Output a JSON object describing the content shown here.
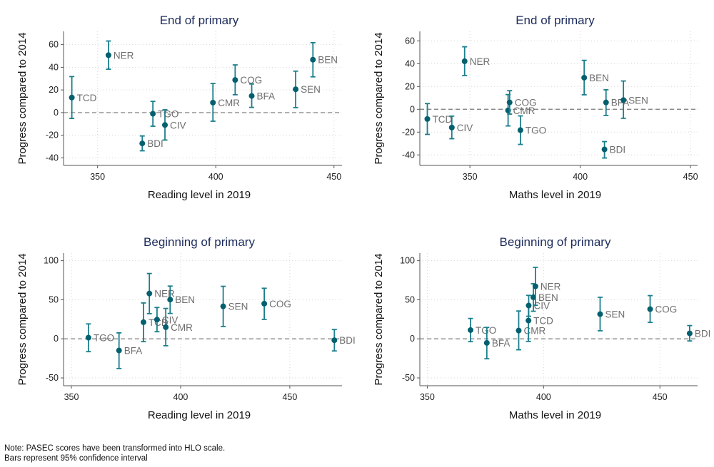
{
  "colors": {
    "marker": "#04606e",
    "errorbar": "#1b7e8c",
    "point_label": "#6e6e6e",
    "title": "#1c2b5c",
    "axis": "#555555",
    "grid": "#d6d6d6",
    "zero_line": "#777777"
  },
  "note": [
    "Note: PASEC scores have been transformed into HLO scale.",
    "Bars represent 95% confidence interval"
  ],
  "chart_data": [
    {
      "type": "scatter",
      "title": "End of primary",
      "xlabel": "Reading level in 2019",
      "ylabel": "Progress compared to 2014",
      "xlim": [
        335.6,
        453.4
      ],
      "ylim": [
        -46.6,
        71.7
      ],
      "xticks": [
        350,
        400,
        450
      ],
      "yticks": [
        -40,
        -20,
        0,
        20,
        40,
        60
      ],
      "grid": true,
      "reference_line_y": 0,
      "points": [
        {
          "label": "TCD",
          "x": 339.1,
          "y": 13.3,
          "lo": -5.1,
          "hi": 31.8
        },
        {
          "label": "NER",
          "x": 354.6,
          "y": 50.7,
          "lo": 38.3,
          "hi": 63.2
        },
        {
          "label": "BDI",
          "x": 368.9,
          "y": -27.2,
          "lo": -33.7,
          "hi": -20.6
        },
        {
          "label": "TGO",
          "x": 373.4,
          "y": -1.0,
          "lo": -12.0,
          "hi": 9.9
        },
        {
          "label": "CIV",
          "x": 378.5,
          "y": -10.9,
          "lo": -24.2,
          "hi": 2.5
        },
        {
          "label": "CMR",
          "x": 398.8,
          "y": 8.8,
          "lo": -7.6,
          "hi": 25.7
        },
        {
          "label": "COG",
          "x": 408.2,
          "y": 28.8,
          "lo": 15.8,
          "hi": 42.1
        },
        {
          "label": "BFA",
          "x": 415.2,
          "y": 14.7,
          "lo": 4.6,
          "hi": 25.3
        },
        {
          "label": "SEN",
          "x": 433.8,
          "y": 20.6,
          "lo": 4.4,
          "hi": 36.6
        },
        {
          "label": "BEN",
          "x": 441.1,
          "y": 46.7,
          "lo": 31.6,
          "hi": 61.7
        }
      ]
    },
    {
      "type": "scatter",
      "title": "End of primary",
      "xlabel": "Maths level in 2019",
      "ylabel": "Progress compared to 2014",
      "xlim": [
        327.3,
        453.2
      ],
      "ylim": [
        -49.2,
        68.3
      ],
      "xticks": [
        350,
        400,
        450
      ],
      "yticks": [
        -40,
        -20,
        0,
        20,
        40,
        60
      ],
      "grid": true,
      "reference_line_y": 0,
      "points": [
        {
          "label": "TCD",
          "x": 330.7,
          "y": -8.5,
          "lo": -22.0,
          "hi": 5.0
        },
        {
          "label": "CIV",
          "x": 341.8,
          "y": -16.0,
          "lo": -25.8,
          "hi": -6.0
        },
        {
          "label": "NER",
          "x": 347.6,
          "y": 42.1,
          "lo": 29.6,
          "hi": 54.8
        },
        {
          "label": "CMR",
          "x": 367.3,
          "y": -1.0,
          "lo": -14.6,
          "hi": 12.9
        },
        {
          "label": "COG",
          "x": 368.0,
          "y": 6.0,
          "lo": -4.2,
          "hi": 16.3
        },
        {
          "label": "TGO",
          "x": 372.9,
          "y": -18.3,
          "lo": -30.8,
          "hi": -5.8
        },
        {
          "label": "BEN",
          "x": 401.8,
          "y": 27.7,
          "lo": 12.7,
          "hi": 42.9
        },
        {
          "label": "BDI",
          "x": 411.0,
          "y": -35.2,
          "lo": -42.7,
          "hi": -28.3
        },
        {
          "label": "BFA",
          "x": 411.7,
          "y": 6.0,
          "lo": -5.4,
          "hi": 17.1
        },
        {
          "label": "SEN",
          "x": 419.6,
          "y": 8.1,
          "lo": -7.9,
          "hi": 24.8
        }
      ]
    },
    {
      "type": "scatter",
      "title": "Beginning of primary",
      "xlabel": "Reading level in 2019",
      "ylabel": "Progress compared to 2014",
      "xlim": [
        346.4,
        473.9
      ],
      "ylim": [
        -60,
        109.7
      ],
      "xticks": [
        350,
        400,
        450
      ],
      "yticks": [
        -50,
        0,
        50,
        100
      ],
      "grid": true,
      "reference_line_y": 0,
      "points": [
        {
          "label": "TGO",
          "x": 357.8,
          "y": 1.5,
          "lo": -16.4,
          "hi": 19.1
        },
        {
          "label": "BFA",
          "x": 371.8,
          "y": -14.9,
          "lo": -38.0,
          "hi": 7.6
        },
        {
          "label": "TCD",
          "x": 383.0,
          "y": 21.3,
          "lo": -3.6,
          "hi": 45.9
        },
        {
          "label": "NER",
          "x": 385.7,
          "y": 58.0,
          "lo": 32.2,
          "hi": 83.6
        },
        {
          "label": "CIV",
          "x": 389.2,
          "y": 24.6,
          "lo": 9.1,
          "hi": 40.1
        },
        {
          "label": "CMR",
          "x": 393.2,
          "y": 14.9,
          "lo": -8.8,
          "hi": 38.9
        },
        {
          "label": "BEN",
          "x": 395.2,
          "y": 50.2,
          "lo": 32.5,
          "hi": 67.5
        },
        {
          "label": "SEN",
          "x": 419.5,
          "y": 41.6,
          "lo": 15.8,
          "hi": 67.2
        },
        {
          "label": "COG",
          "x": 438.3,
          "y": 45.0,
          "lo": 24.9,
          "hi": 64.7
        },
        {
          "label": "BDI",
          "x": 470.4,
          "y": -1.8,
          "lo": -15.5,
          "hi": 11.9
        }
      ]
    },
    {
      "type": "scatter",
      "title": "Beginning of primary",
      "xlabel": "Maths level in 2019",
      "ylabel": "Progress compared to 2014",
      "xlim": [
        346.8,
        466.2
      ],
      "ylim": [
        -60,
        109.7
      ],
      "xticks": [
        350,
        400,
        450
      ],
      "yticks": [
        -50,
        0,
        50,
        100
      ],
      "grid": true,
      "reference_line_y": 0,
      "points": [
        {
          "label": "TGO",
          "x": 368.6,
          "y": 11.2,
          "lo": -3.6,
          "hi": 26.1
        },
        {
          "label": "BFA",
          "x": 375.6,
          "y": -5.2,
          "lo": -25.5,
          "hi": 14.6
        },
        {
          "label": "CMR",
          "x": 389.3,
          "y": 10.6,
          "lo": -14.0,
          "hi": 35.6
        },
        {
          "label": "TCD",
          "x": 393.5,
          "y": 23.4,
          "lo": -3.3,
          "hi": 43.5
        },
        {
          "label": "CIV",
          "x": 393.6,
          "y": 42.6,
          "lo": 28.9,
          "hi": 55.6
        },
        {
          "label": "BEN",
          "x": 395.6,
          "y": 53.2,
          "lo": 35.3,
          "hi": 70.5
        },
        {
          "label": "NER",
          "x": 396.5,
          "y": 67.2,
          "lo": 42.9,
          "hi": 91.5
        },
        {
          "label": "SEN",
          "x": 424.3,
          "y": 31.6,
          "lo": 10.3,
          "hi": 53.2
        },
        {
          "label": "COG",
          "x": 445.8,
          "y": 38.0,
          "lo": 21.0,
          "hi": 55.3
        },
        {
          "label": "BDI",
          "x": 462.8,
          "y": 7.0,
          "lo": -2.7,
          "hi": 17.0
        }
      ]
    }
  ]
}
